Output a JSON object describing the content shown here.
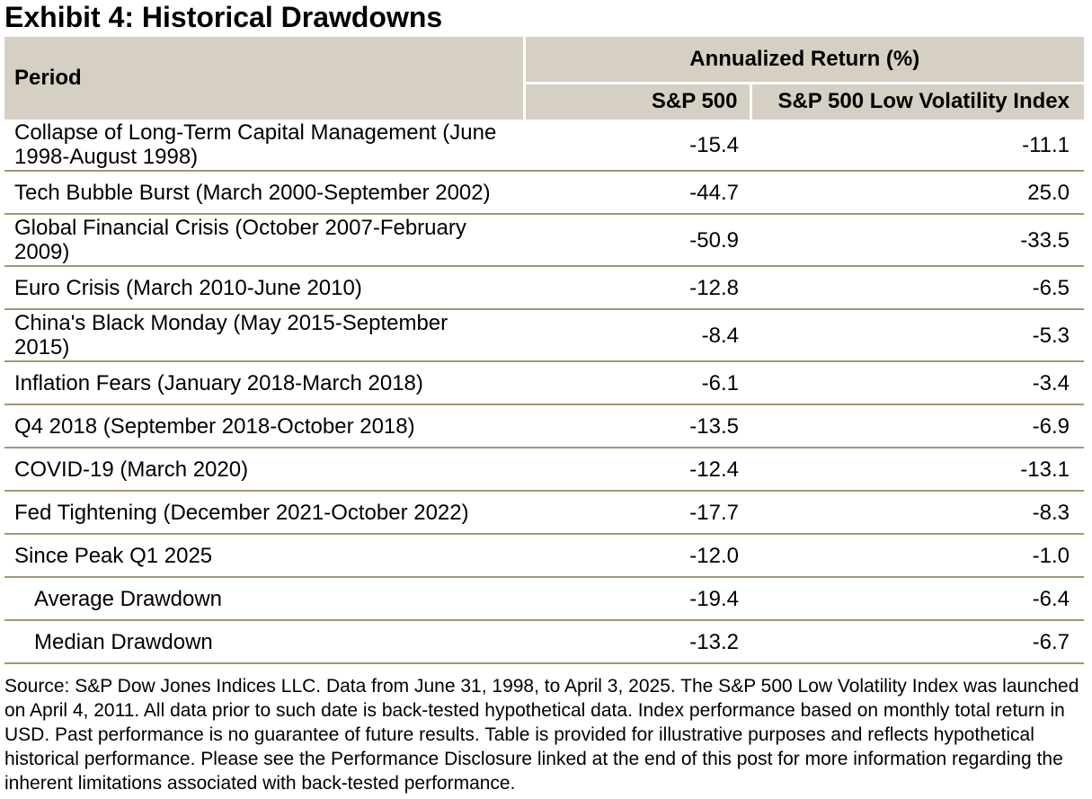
{
  "title": "Exhibit 4: Historical Drawdowns",
  "chart_data": {
    "type": "table",
    "title": "Exhibit 4: Historical Drawdowns",
    "group_header": "Annualized Return (%)",
    "columns": [
      "Period",
      "S&P 500",
      "S&P 500 Low Volatility Index"
    ],
    "rows": [
      {
        "period": "Collapse of Long-Term Capital Management (June 1998-August 1998)",
        "sp500": "-15.4",
        "low_vol": "-11.1"
      },
      {
        "period": "Tech Bubble Burst (March 2000-September 2002)",
        "sp500": "-44.7",
        "low_vol": "25.0"
      },
      {
        "period": "Global Financial Crisis (October 2007-February 2009)",
        "sp500": "-50.9",
        "low_vol": "-33.5"
      },
      {
        "period": "Euro Crisis (March 2010-June 2010)",
        "sp500": "-12.8",
        "low_vol": "-6.5"
      },
      {
        "period": "China's Black Monday (May 2015-September 2015)",
        "sp500": "-8.4",
        "low_vol": "-5.3"
      },
      {
        "period": "Inflation Fears (January 2018-March 2018)",
        "sp500": "-6.1",
        "low_vol": "-3.4"
      },
      {
        "period": "Q4 2018 (September 2018-October 2018)",
        "sp500": "-13.5",
        "low_vol": "-6.9"
      },
      {
        "period": "COVID-19 (March 2020)",
        "sp500": "-12.4",
        "low_vol": "-13.1"
      },
      {
        "period": "Fed Tightening (December 2021-October 2022)",
        "sp500": "-17.7",
        "low_vol": "-8.3"
      },
      {
        "period": "Since Peak Q1 2025",
        "sp500": "-12.0",
        "low_vol": "-1.0"
      },
      {
        "period": "Average Drawdown",
        "sp500": "-19.4",
        "low_vol": "-6.4",
        "summary": true
      },
      {
        "period": "Median Drawdown",
        "sp500": "-13.2",
        "low_vol": "-6.7",
        "summary": true
      }
    ]
  },
  "footnote": "Source: S&P Dow Jones Indices LLC. Data from June 31, 1998, to April 3, 2025. The S&P 500 Low Volatility Index was launched on April 4, 2011. All data prior to such date is back-tested hypothetical data. Index performance based on monthly total return in USD. Past performance is no guarantee of future results. Table is provided for illustrative purposes and reflects hypothetical historical performance. Please see the Performance Disclosure linked at the end of this post for more information regarding the inherent limitations associated with back-tested performance.",
  "colors": {
    "header_bg": "#d6d0c4",
    "row_border": "#a39676",
    "text": "#000000",
    "background": "#ffffff"
  }
}
